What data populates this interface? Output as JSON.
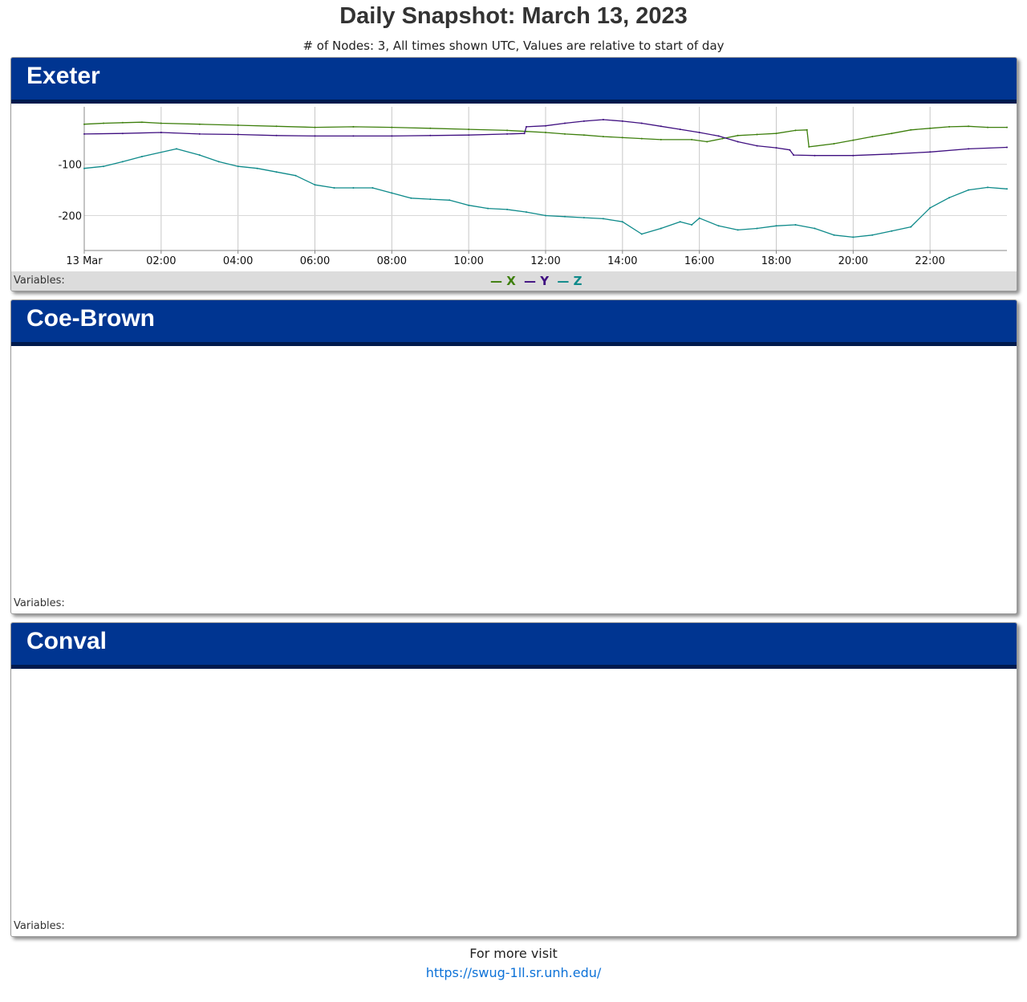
{
  "page": {
    "title": "Daily Snapshot: March 13, 2023",
    "subtitle": "# of Nodes: 3, All times shown UTC, Values are relative to start of day"
  },
  "nodes": [
    {
      "name": "Exeter",
      "variables_label": "Variables:",
      "has_chart": true
    },
    {
      "name": "Coe-Brown",
      "variables_label": "Variables:",
      "has_chart": false
    },
    {
      "name": "Conval",
      "variables_label": "Variables:",
      "has_chart": false
    }
  ],
  "legend": [
    {
      "label": "X",
      "color": "#3d7f0c"
    },
    {
      "label": "Y",
      "color": "#3f0f80"
    },
    {
      "label": "Z",
      "color": "#0e8a8a"
    }
  ],
  "footer": {
    "text": "For more visit",
    "link_text": "https://swug-1ll.sr.unh.edu/"
  },
  "chart_data": {
    "type": "line",
    "title": "",
    "xlabel": "",
    "ylabel": "",
    "x_unit": "hours UTC",
    "xlim": [
      0,
      24
    ],
    "ylim": [
      -268,
      12
    ],
    "xticks": [
      {
        "value": 0,
        "label": "13 Mar"
      },
      {
        "value": 2,
        "label": "02:00"
      },
      {
        "value": 4,
        "label": "04:00"
      },
      {
        "value": 6,
        "label": "06:00"
      },
      {
        "value": 8,
        "label": "08:00"
      },
      {
        "value": 10,
        "label": "10:00"
      },
      {
        "value": 12,
        "label": "12:00"
      },
      {
        "value": 14,
        "label": "14:00"
      },
      {
        "value": 16,
        "label": "16:00"
      },
      {
        "value": 18,
        "label": "18:00"
      },
      {
        "value": 20,
        "label": "20:00"
      },
      {
        "value": 22,
        "label": "22:00"
      }
    ],
    "yticks": [
      {
        "value": -100,
        "label": "-100"
      },
      {
        "value": -200,
        "label": "-200"
      }
    ],
    "grid": true,
    "legend_position": "bottom-center",
    "series": [
      {
        "name": "X",
        "color": "#3d7f0c",
        "points": [
          [
            0,
            -22
          ],
          [
            0.5,
            -20
          ],
          [
            1,
            -19
          ],
          [
            1.5,
            -18
          ],
          [
            2,
            -20
          ],
          [
            3,
            -22
          ],
          [
            4,
            -24
          ],
          [
            5,
            -26
          ],
          [
            6,
            -28
          ],
          [
            7,
            -27
          ],
          [
            8,
            -28
          ],
          [
            9,
            -30
          ],
          [
            10,
            -32
          ],
          [
            11,
            -34
          ],
          [
            11.5,
            -36
          ],
          [
            12,
            -38
          ],
          [
            12.5,
            -41
          ],
          [
            13,
            -43
          ],
          [
            13.5,
            -46
          ],
          [
            14,
            -48
          ],
          [
            14.5,
            -50
          ],
          [
            15,
            -52
          ],
          [
            15.8,
            -52
          ],
          [
            16.2,
            -56
          ],
          [
            16.6,
            -50
          ],
          [
            17,
            -44
          ],
          [
            17.5,
            -42
          ],
          [
            18,
            -40
          ],
          [
            18.5,
            -34
          ],
          [
            18.8,
            -33
          ],
          [
            18.85,
            -66
          ],
          [
            19.5,
            -60
          ],
          [
            20,
            -53
          ],
          [
            20.5,
            -46
          ],
          [
            21,
            -40
          ],
          [
            21.5,
            -33
          ],
          [
            22,
            -30
          ],
          [
            22.5,
            -27
          ],
          [
            23,
            -26
          ],
          [
            23.5,
            -28
          ],
          [
            24,
            -28
          ]
        ]
      },
      {
        "name": "Y",
        "color": "#3f0f80",
        "points": [
          [
            0,
            -41
          ],
          [
            1,
            -40
          ],
          [
            2,
            -38
          ],
          [
            3,
            -41
          ],
          [
            4,
            -42
          ],
          [
            5,
            -44
          ],
          [
            6,
            -45
          ],
          [
            7,
            -45
          ],
          [
            8,
            -45
          ],
          [
            9,
            -44
          ],
          [
            10,
            -43
          ],
          [
            11,
            -41
          ],
          [
            11.45,
            -40
          ],
          [
            11.5,
            -27
          ],
          [
            12,
            -25
          ],
          [
            12.5,
            -20
          ],
          [
            13,
            -16
          ],
          [
            13.5,
            -13
          ],
          [
            14,
            -16
          ],
          [
            14.5,
            -20
          ],
          [
            15,
            -26
          ],
          [
            15.5,
            -32
          ],
          [
            16,
            -38
          ],
          [
            16.5,
            -45
          ],
          [
            17,
            -56
          ],
          [
            17.5,
            -64
          ],
          [
            18,
            -68
          ],
          [
            18.35,
            -72
          ],
          [
            18.45,
            -82
          ],
          [
            19,
            -83
          ],
          [
            20,
            -83
          ],
          [
            21,
            -80
          ],
          [
            22,
            -76
          ],
          [
            23,
            -70
          ],
          [
            24,
            -67
          ]
        ]
      },
      {
        "name": "Z",
        "color": "#0e8a8a",
        "points": [
          [
            0,
            -108
          ],
          [
            0.5,
            -104
          ],
          [
            1,
            -95
          ],
          [
            1.5,
            -85
          ],
          [
            2.4,
            -70
          ],
          [
            3,
            -82
          ],
          [
            3.5,
            -95
          ],
          [
            4,
            -104
          ],
          [
            4.5,
            -108
          ],
          [
            5,
            -115
          ],
          [
            5.5,
            -122
          ],
          [
            6,
            -140
          ],
          [
            6.5,
            -146
          ],
          [
            7,
            -146
          ],
          [
            7.5,
            -146
          ],
          [
            8,
            -156
          ],
          [
            8.5,
            -166
          ],
          [
            9,
            -168
          ],
          [
            9.5,
            -170
          ],
          [
            10,
            -180
          ],
          [
            10.5,
            -186
          ],
          [
            11,
            -188
          ],
          [
            11.5,
            -193
          ],
          [
            12,
            -200
          ],
          [
            12.5,
            -202
          ],
          [
            13,
            -204
          ],
          [
            13.5,
            -206
          ],
          [
            14,
            -212
          ],
          [
            14.5,
            -236
          ],
          [
            15,
            -225
          ],
          [
            15.5,
            -212
          ],
          [
            15.8,
            -218
          ],
          [
            16,
            -205
          ],
          [
            16.5,
            -220
          ],
          [
            17,
            -228
          ],
          [
            17.5,
            -225
          ],
          [
            18,
            -220
          ],
          [
            18.5,
            -218
          ],
          [
            19,
            -225
          ],
          [
            19.5,
            -238
          ],
          [
            20,
            -242
          ],
          [
            20.5,
            -238
          ],
          [
            21,
            -230
          ],
          [
            21.5,
            -222
          ],
          [
            22,
            -185
          ],
          [
            22.5,
            -165
          ],
          [
            23,
            -150
          ],
          [
            23.5,
            -145
          ],
          [
            24,
            -148
          ]
        ]
      }
    ]
  }
}
